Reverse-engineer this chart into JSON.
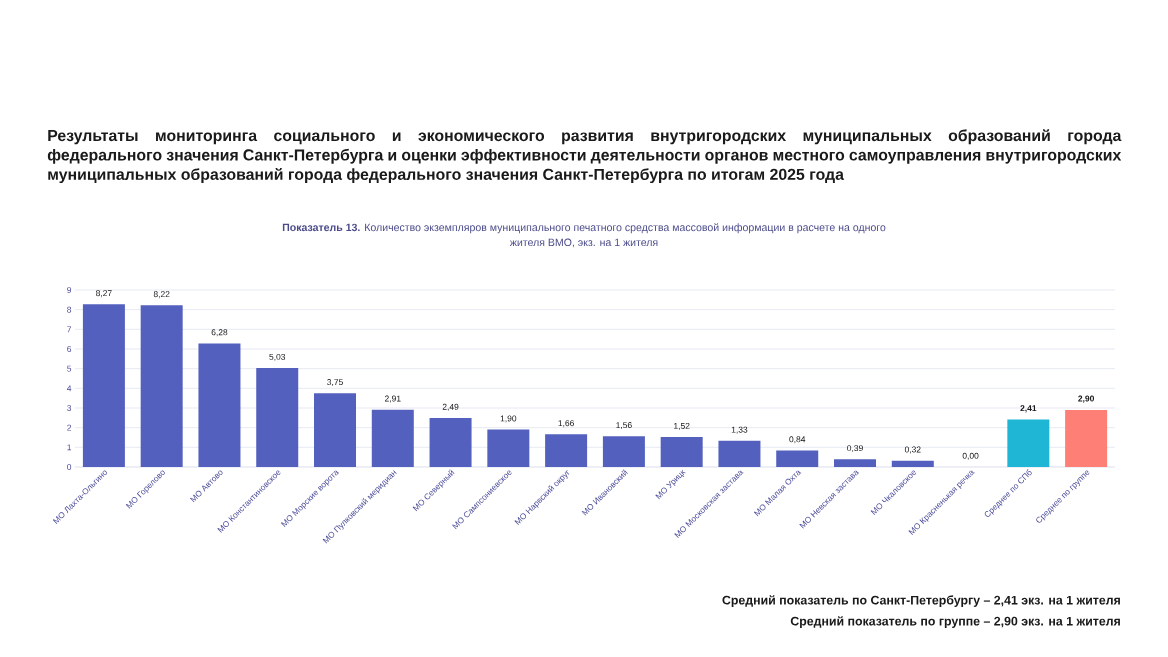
{
  "chart_data": {
    "type": "bar",
    "title": "Результаты мониторинга социального и экономического развития внутригородских муниципальных образований города федерального значения Санкт-Петербурга и оценки эффективности деятельности органов местного самоуправления внутригородских муниципальных образований города федерального значения Санкт-Петербурга по итогам 2025 года",
    "subtitle": "**Показатель 13.** Количество экземпляров муниципального печатного средства массовой информации в расчете на одного жителя ВМО, экз. на 1 жителя",
    "categories": [
      "МО Лахта-Ольгино",
      "МО Горелово",
      "МО Автово",
      "МО Константиновское",
      "МО Морские ворота",
      "МО Пулковский меридиан",
      "МО Северный",
      "МО Сампсониевское",
      "МО Нарвский округ",
      "МО Ивановский",
      "МО Урицк",
      "МО Московская застава",
      "МО Малая Охта",
      "МО Невская застава",
      "МО Чкаловское",
      "МО Красненькая речка",
      "Среднее по СПб",
      "Среднее по группе"
    ],
    "values": [
      8.27,
      8.22,
      6.28,
      5.03,
      3.75,
      2.91,
      2.49,
      1.9,
      1.66,
      1.56,
      1.52,
      1.33,
      0.84,
      0.39,
      0.32,
      0.0,
      2.41,
      2.9
    ],
    "value_labels": [
      "8,27",
      "8,22",
      "6,28",
      "5,03",
      "3,75",
      "2,91",
      "2,49",
      "1,90",
      "1,66",
      "1,56",
      "1,52",
      "1,33",
      "0,84",
      "0,39",
      "0,32",
      "0,00",
      "**2,41**",
      "**2,90**"
    ],
    "colors": [
      "#5360be",
      "#5360be",
      "#5360be",
      "#5360be",
      "#5360be",
      "#5360be",
      "#5360be",
      "#5360be",
      "#5360be",
      "#5360be",
      "#5360be",
      "#5360be",
      "#5360be",
      "#5360be",
      "#5360be",
      "#5360be",
      "#1fb5d5",
      "#fd7f75"
    ],
    "ylim": [
      0,
      9
    ],
    "yticks": [
      0,
      1,
      2,
      3,
      4,
      5,
      6,
      7,
      8,
      9
    ],
    "grid": "y",
    "annotations": [
      "Средний показатель по Санкт-Петербургу – 2,41 экз. на 1 жителя",
      "Средний показатель по группе – 2,90 экз. на 1 жителя"
    ]
  }
}
